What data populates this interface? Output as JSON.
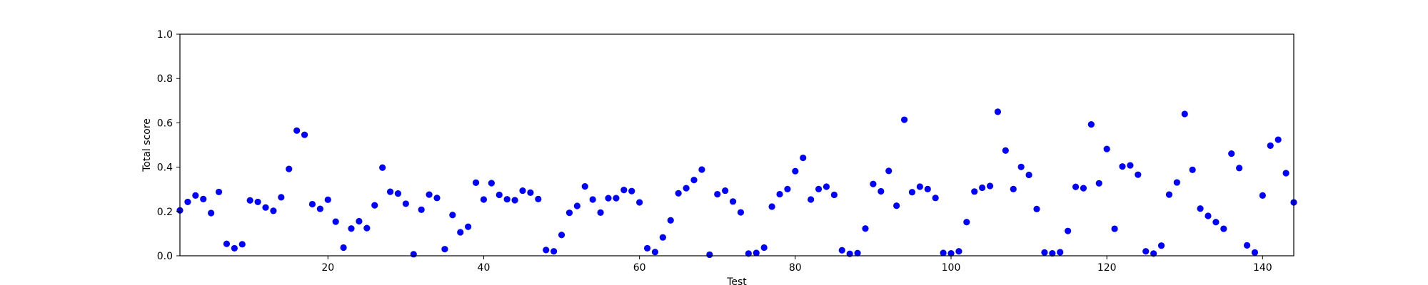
{
  "chart_data": {
    "type": "scatter",
    "title": "",
    "xlabel": "Test",
    "ylabel": "Total score",
    "xlim": [
      1,
      144
    ],
    "ylim": [
      0.0,
      1.0
    ],
    "xticks": [
      20,
      40,
      60,
      80,
      100,
      120,
      140
    ],
    "yticks": [
      "0.0",
      "0.2",
      "0.4",
      "0.6",
      "0.8",
      "1.0"
    ],
    "grid": false,
    "marker_color": "#0000ff",
    "x": [
      1,
      2,
      3,
      4,
      5,
      6,
      7,
      8,
      9,
      10,
      11,
      12,
      13,
      14,
      15,
      16,
      17,
      18,
      19,
      20,
      21,
      22,
      23,
      24,
      25,
      26,
      27,
      28,
      29,
      30,
      31,
      32,
      33,
      34,
      35,
      36,
      37,
      38,
      39,
      40,
      41,
      42,
      43,
      44,
      45,
      46,
      47,
      48,
      49,
      50,
      51,
      52,
      53,
      54,
      55,
      56,
      57,
      58,
      59,
      60,
      61,
      62,
      63,
      64,
      65,
      66,
      67,
      68,
      69,
      70,
      71,
      72,
      73,
      74,
      75,
      76,
      77,
      78,
      79,
      80,
      81,
      82,
      83,
      84,
      85,
      86,
      87,
      88,
      89,
      90,
      91,
      92,
      93,
      94,
      95,
      96,
      97,
      98,
      99,
      100,
      101,
      102,
      103,
      104,
      105,
      106,
      107,
      108,
      109,
      110,
      111,
      112,
      113,
      114,
      115,
      116,
      117,
      118,
      119,
      120,
      121,
      122,
      123,
      124,
      125,
      126,
      127,
      128,
      129,
      130,
      131,
      132,
      133,
      134,
      135,
      136,
      137,
      138,
      139,
      140,
      141,
      142,
      143,
      144
    ],
    "y": [
      0.205,
      0.243,
      0.272,
      0.256,
      0.193,
      0.288,
      0.054,
      0.034,
      0.052,
      0.25,
      0.243,
      0.218,
      0.203,
      0.264,
      0.392,
      0.565,
      0.546,
      0.233,
      0.212,
      0.253,
      0.154,
      0.037,
      0.123,
      0.156,
      0.125,
      0.228,
      0.398,
      0.289,
      0.281,
      0.235,
      0.007,
      0.208,
      0.276,
      0.261,
      0.03,
      0.184,
      0.106,
      0.131,
      0.33,
      0.254,
      0.328,
      0.275,
      0.255,
      0.251,
      0.294,
      0.285,
      0.256,
      0.026,
      0.02,
      0.094,
      0.194,
      0.225,
      0.313,
      0.254,
      0.195,
      0.26,
      0.26,
      0.297,
      0.292,
      0.241,
      0.034,
      0.017,
      0.083,
      0.16,
      0.282,
      0.305,
      0.342,
      0.389,
      0.005,
      0.278,
      0.294,
      0.245,
      0.196,
      0.01,
      0.013,
      0.037,
      0.222,
      0.278,
      0.301,
      0.382,
      0.442,
      0.254,
      0.301,
      0.312,
      0.275,
      0.025,
      0.009,
      0.012,
      0.123,
      0.324,
      0.291,
      0.383,
      0.226,
      0.614,
      0.287,
      0.312,
      0.301,
      0.261,
      0.013,
      0.011,
      0.02,
      0.152,
      0.29,
      0.307,
      0.315,
      0.65,
      0.475,
      0.301,
      0.401,
      0.365,
      0.211,
      0.015,
      0.011,
      0.016,
      0.112,
      0.311,
      0.305,
      0.593,
      0.327,
      0.482,
      0.122,
      0.403,
      0.408,
      0.366,
      0.02,
      0.01,
      0.046,
      0.276,
      0.331,
      0.64,
      0.388,
      0.213,
      0.18,
      0.152,
      0.122,
      0.461,
      0.396,
      0.047,
      0.015,
      0.272,
      0.497,
      0.524,
      0.373,
      0.241
    ]
  }
}
